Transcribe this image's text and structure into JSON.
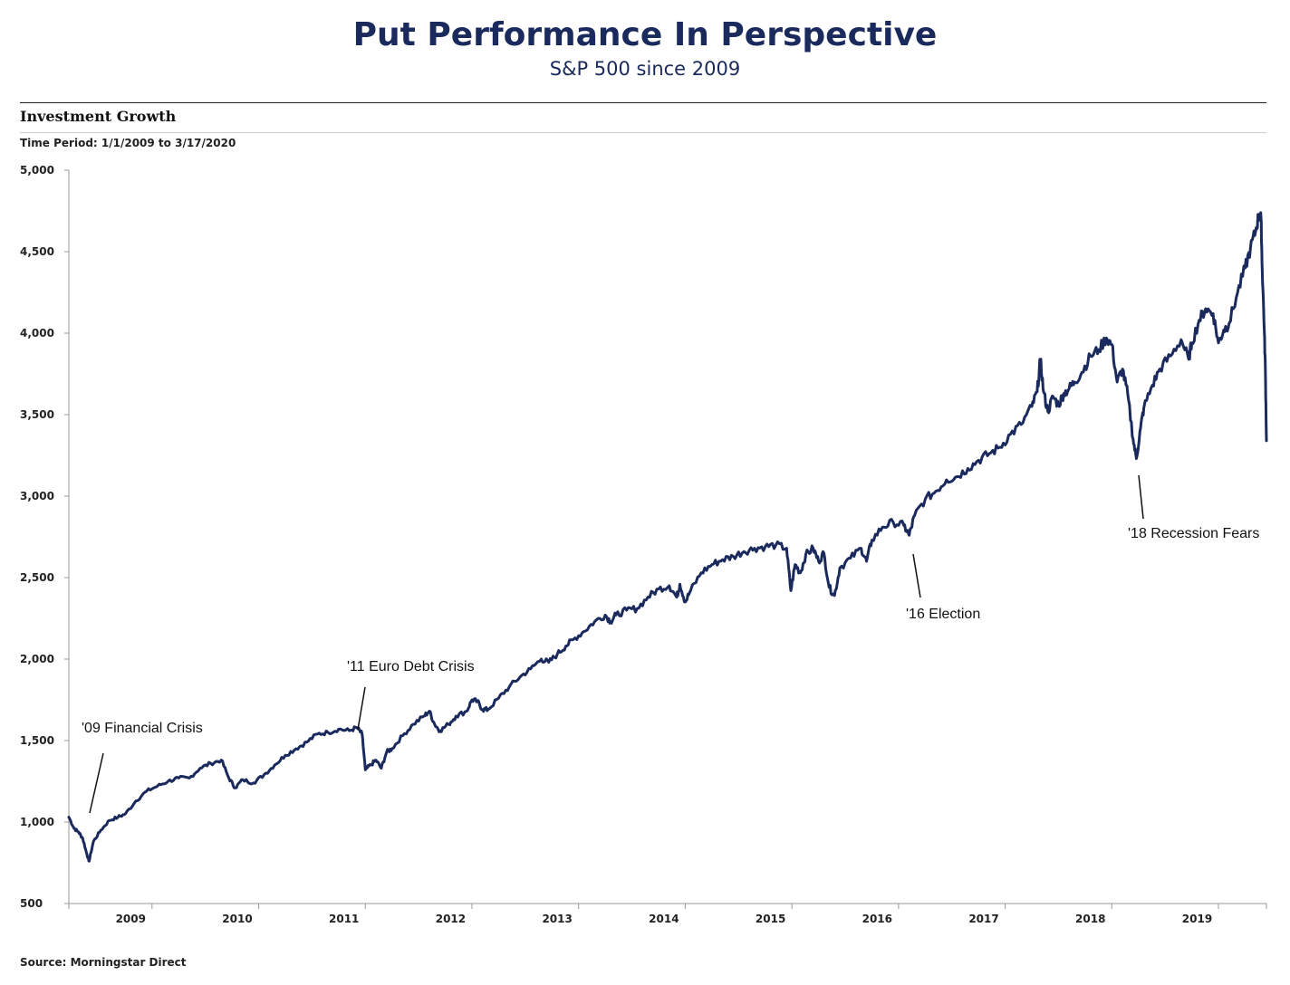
{
  "header": {
    "title": "Put Performance In Perspective",
    "subtitle": "S&P 500 since 2009"
  },
  "section": {
    "title": "Investment Growth",
    "time_period": "Time Period: 1/1/2009 to 3/17/2020"
  },
  "source": "Source: Morningstar Direct",
  "colors": {
    "line": "#1b2a5c",
    "axis": "#999999"
  },
  "chart_data": {
    "type": "line",
    "title": "Investment Growth",
    "xlabel": "",
    "ylabel": "",
    "ylim": [
      500,
      5000
    ],
    "xlim": [
      2008.22,
      2019.45
    ],
    "y_ticks": [
      500,
      1000,
      1500,
      2000,
      2500,
      3000,
      3500,
      4000,
      4500,
      5000
    ],
    "y_tick_labels": [
      "500",
      "1,000",
      "1,500",
      "2,000",
      "2,500",
      "3,000",
      "3,500",
      "4,000",
      "4,500",
      "5,000"
    ],
    "x_ticks": [
      2009,
      2010,
      2011,
      2012,
      2013,
      2014,
      2015,
      2016,
      2017,
      2018,
      2019
    ],
    "x_tick_labels": [
      "2009",
      "2010",
      "2011",
      "2012",
      "2013",
      "2014",
      "2015",
      "2016",
      "2017",
      "2018",
      "2019"
    ],
    "grid": false,
    "series": [
      {
        "name": "S&P 500",
        "points": [
          [
            2008.22,
            1030
          ],
          [
            2008.27,
            960
          ],
          [
            2008.31,
            940
          ],
          [
            2008.35,
            900
          ],
          [
            2008.39,
            800
          ],
          [
            2008.41,
            760
          ],
          [
            2008.45,
            880
          ],
          [
            2008.52,
            950
          ],
          [
            2008.6,
            1010
          ],
          [
            2008.68,
            1030
          ],
          [
            2008.75,
            1050
          ],
          [
            2008.85,
            1130
          ],
          [
            2008.95,
            1190
          ],
          [
            2009.05,
            1220
          ],
          [
            2009.15,
            1250
          ],
          [
            2009.25,
            1270
          ],
          [
            2009.35,
            1270
          ],
          [
            2009.45,
            1330
          ],
          [
            2009.55,
            1360
          ],
          [
            2009.65,
            1380
          ],
          [
            2009.72,
            1270
          ],
          [
            2009.78,
            1210
          ],
          [
            2009.85,
            1260
          ],
          [
            2009.95,
            1240
          ],
          [
            2010.05,
            1290
          ],
          [
            2010.15,
            1350
          ],
          [
            2010.25,
            1410
          ],
          [
            2010.35,
            1450
          ],
          [
            2010.45,
            1490
          ],
          [
            2010.55,
            1540
          ],
          [
            2010.65,
            1550
          ],
          [
            2010.75,
            1570
          ],
          [
            2010.85,
            1560
          ],
          [
            2010.92,
            1580
          ],
          [
            2010.97,
            1540
          ],
          [
            2011.0,
            1320
          ],
          [
            2011.05,
            1350
          ],
          [
            2011.1,
            1380
          ],
          [
            2011.15,
            1330
          ],
          [
            2011.2,
            1430
          ],
          [
            2011.25,
            1450
          ],
          [
            2011.35,
            1530
          ],
          [
            2011.45,
            1600
          ],
          [
            2011.55,
            1650
          ],
          [
            2011.6,
            1680
          ],
          [
            2011.65,
            1600
          ],
          [
            2011.7,
            1560
          ],
          [
            2011.78,
            1600
          ],
          [
            2011.85,
            1650
          ],
          [
            2011.95,
            1680
          ],
          [
            2012.0,
            1750
          ],
          [
            2012.05,
            1740
          ],
          [
            2012.1,
            1690
          ],
          [
            2012.15,
            1690
          ],
          [
            2012.25,
            1760
          ],
          [
            2012.35,
            1830
          ],
          [
            2012.45,
            1890
          ],
          [
            2012.55,
            1940
          ],
          [
            2012.65,
            2000
          ],
          [
            2012.72,
            1980
          ],
          [
            2012.8,
            2030
          ],
          [
            2012.88,
            2080
          ],
          [
            2012.95,
            2120
          ],
          [
            2013.05,
            2170
          ],
          [
            2013.15,
            2230
          ],
          [
            2013.25,
            2270
          ],
          [
            2013.3,
            2230
          ],
          [
            2013.35,
            2270
          ],
          [
            2013.45,
            2300
          ],
          [
            2013.55,
            2310
          ],
          [
            2013.65,
            2380
          ],
          [
            2013.75,
            2430
          ],
          [
            2013.85,
            2450
          ],
          [
            2013.92,
            2380
          ],
          [
            2013.95,
            2460
          ],
          [
            2014.0,
            2350
          ],
          [
            2014.05,
            2420
          ],
          [
            2014.15,
            2530
          ],
          [
            2014.25,
            2580
          ],
          [
            2014.35,
            2610
          ],
          [
            2014.45,
            2630
          ],
          [
            2014.55,
            2660
          ],
          [
            2014.65,
            2680
          ],
          [
            2014.75,
            2690
          ],
          [
            2014.85,
            2700
          ],
          [
            2014.95,
            2680
          ],
          [
            2014.99,
            2420
          ],
          [
            2015.03,
            2580
          ],
          [
            2015.08,
            2530
          ],
          [
            2015.13,
            2640
          ],
          [
            2015.2,
            2680
          ],
          [
            2015.25,
            2600
          ],
          [
            2015.3,
            2650
          ],
          [
            2015.35,
            2440
          ],
          [
            2015.4,
            2390
          ],
          [
            2015.45,
            2560
          ],
          [
            2015.55,
            2620
          ],
          [
            2015.65,
            2680
          ],
          [
            2015.7,
            2600
          ],
          [
            2015.75,
            2730
          ],
          [
            2015.85,
            2810
          ],
          [
            2015.95,
            2840
          ],
          [
            2016.05,
            2820
          ],
          [
            2016.1,
            2760
          ],
          [
            2016.15,
            2880
          ],
          [
            2016.25,
            2980
          ],
          [
            2016.35,
            3030
          ],
          [
            2016.45,
            3100
          ],
          [
            2016.55,
            3120
          ],
          [
            2016.65,
            3170
          ],
          [
            2016.75,
            3220
          ],
          [
            2016.85,
            3260
          ],
          [
            2016.95,
            3300
          ],
          [
            2017.05,
            3380
          ],
          [
            2017.15,
            3440
          ],
          [
            2017.25,
            3550
          ],
          [
            2017.3,
            3640
          ],
          [
            2017.33,
            3840
          ],
          [
            2017.36,
            3640
          ],
          [
            2017.4,
            3520
          ],
          [
            2017.45,
            3610
          ],
          [
            2017.5,
            3560
          ],
          [
            2017.55,
            3630
          ],
          [
            2017.6,
            3660
          ],
          [
            2017.65,
            3700
          ],
          [
            2017.72,
            3760
          ],
          [
            2017.8,
            3860
          ],
          [
            2017.88,
            3900
          ],
          [
            2017.95,
            3970
          ],
          [
            2018.0,
            3930
          ],
          [
            2018.05,
            3700
          ],
          [
            2018.1,
            3780
          ],
          [
            2018.15,
            3620
          ],
          [
            2018.2,
            3350
          ],
          [
            2018.23,
            3230
          ],
          [
            2018.27,
            3420
          ],
          [
            2018.3,
            3540
          ],
          [
            2018.38,
            3680
          ],
          [
            2018.45,
            3780
          ],
          [
            2018.55,
            3860
          ],
          [
            2018.65,
            3960
          ],
          [
            2018.72,
            3840
          ],
          [
            2018.75,
            3940
          ],
          [
            2018.82,
            4080
          ],
          [
            2018.88,
            4150
          ],
          [
            2018.95,
            4120
          ],
          [
            2019.0,
            3940
          ],
          [
            2019.05,
            4020
          ],
          [
            2019.1,
            4060
          ],
          [
            2019.18,
            4250
          ],
          [
            2019.25,
            4400
          ],
          [
            2019.3,
            4520
          ],
          [
            2019.35,
            4630
          ],
          [
            2019.38,
            4730
          ],
          [
            2019.4,
            4700
          ],
          [
            2019.41,
            4400
          ],
          [
            2019.43,
            4020
          ],
          [
            2019.44,
            3780
          ],
          [
            2019.45,
            3340
          ]
        ]
      }
    ],
    "annotations": [
      {
        "text": "'09 Financial Crisis",
        "x": 2008.42,
        "y": 1050
      },
      {
        "text": "'11 Euro Debt Crisis",
        "x": 2011.08,
        "y": 1570
      },
      {
        "text": "'16 Election",
        "x": 2016.12,
        "y": 2730
      },
      {
        "text": "'18 Recession Fears",
        "x": 2018.24,
        "y": 3230
      }
    ]
  }
}
